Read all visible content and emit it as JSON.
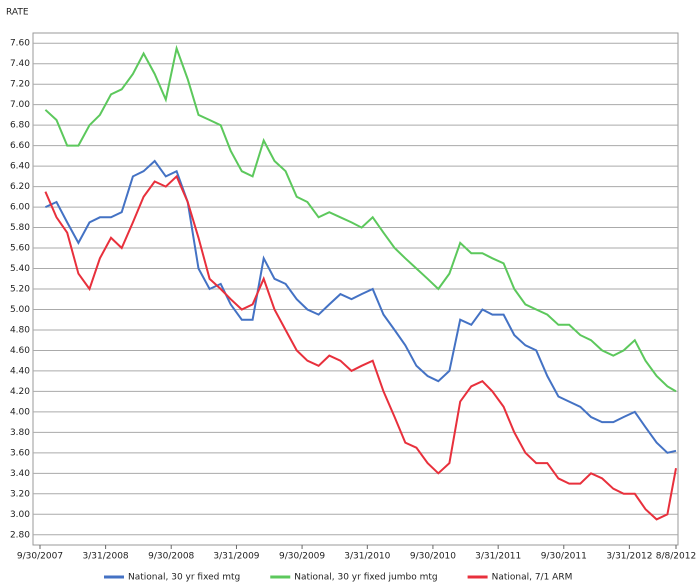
{
  "chart_data": {
    "type": "line",
    "y_label": "RATE",
    "x": [
      "10/15/2007",
      "11/15/2007",
      "12/15/2007",
      "1/15/2008",
      "2/15/2008",
      "3/15/2008",
      "4/15/2008",
      "5/15/2008",
      "6/15/2008",
      "7/15/2008",
      "8/15/2008",
      "9/15/2008",
      "10/15/2008",
      "11/15/2008",
      "12/15/2008",
      "1/15/2009",
      "2/15/2009",
      "3/15/2009",
      "4/15/2009",
      "5/15/2009",
      "6/15/2009",
      "7/15/2009",
      "8/15/2009",
      "9/15/2009",
      "10/15/2009",
      "11/15/2009",
      "12/15/2009",
      "1/15/2010",
      "2/15/2010",
      "3/15/2010",
      "4/15/2010",
      "5/15/2010",
      "6/15/2010",
      "7/15/2010",
      "8/15/2010",
      "9/15/2010",
      "10/15/2010",
      "11/15/2010",
      "12/15/2010",
      "1/15/2011",
      "2/15/2011",
      "3/15/2011",
      "4/15/2011",
      "5/15/2011",
      "6/15/2011",
      "7/15/2011",
      "8/15/2011",
      "9/15/2011",
      "10/15/2011",
      "11/15/2011",
      "12/15/2011",
      "1/15/2012",
      "2/15/2012",
      "3/15/2012",
      "4/15/2012",
      "5/15/2012",
      "6/15/2012",
      "7/15/2012",
      "8/8/2012"
    ],
    "series": [
      {
        "name": "National, 30 yr fixed mtg",
        "color": "#4472c4",
        "values": [
          6.0,
          6.05,
          5.85,
          5.65,
          5.85,
          5.9,
          5.9,
          5.95,
          6.3,
          6.35,
          6.45,
          6.3,
          6.35,
          6.05,
          5.4,
          5.2,
          5.25,
          5.05,
          4.9,
          4.9,
          5.5,
          5.3,
          5.25,
          5.1,
          5.0,
          4.95,
          5.05,
          5.15,
          5.1,
          5.15,
          5.2,
          4.95,
          4.8,
          4.65,
          4.45,
          4.35,
          4.3,
          4.4,
          4.9,
          4.85,
          5.0,
          4.95,
          4.95,
          4.75,
          4.65,
          4.6,
          4.35,
          4.15,
          4.1,
          4.05,
          3.95,
          3.9,
          3.9,
          3.95,
          4.0,
          3.85,
          3.7,
          3.6,
          3.62
        ]
      },
      {
        "name": "National, 30 yr fixed jumbo mtg",
        "color": "#5cc85c",
        "values": [
          6.95,
          6.85,
          6.6,
          6.6,
          6.8,
          6.9,
          7.1,
          7.15,
          7.3,
          7.5,
          7.3,
          7.05,
          7.55,
          7.25,
          6.9,
          6.85,
          6.8,
          6.55,
          6.35,
          6.3,
          6.65,
          6.45,
          6.35,
          6.1,
          6.05,
          5.9,
          5.95,
          5.9,
          5.85,
          5.8,
          5.9,
          5.75,
          5.6,
          5.5,
          5.4,
          5.3,
          5.2,
          5.35,
          5.65,
          5.55,
          5.55,
          5.5,
          5.45,
          5.2,
          5.05,
          5.0,
          4.95,
          4.85,
          4.85,
          4.75,
          4.7,
          4.6,
          4.55,
          4.6,
          4.7,
          4.5,
          4.35,
          4.25,
          4.2
        ]
      },
      {
        "name": "National, 7/1 ARM",
        "color": "#e8303c",
        "values": [
          6.15,
          5.9,
          5.75,
          5.35,
          5.2,
          5.5,
          5.7,
          5.6,
          5.85,
          6.1,
          6.25,
          6.2,
          6.3,
          6.05,
          5.7,
          5.3,
          5.2,
          5.1,
          5.0,
          5.05,
          5.3,
          5.0,
          4.8,
          4.6,
          4.5,
          4.45,
          4.55,
          4.5,
          4.4,
          4.45,
          4.5,
          4.2,
          3.95,
          3.7,
          3.65,
          3.5,
          3.4,
          3.5,
          4.1,
          4.25,
          4.3,
          4.2,
          4.05,
          3.8,
          3.6,
          3.5,
          3.5,
          3.35,
          3.3,
          3.3,
          3.4,
          3.35,
          3.25,
          3.2,
          3.2,
          3.05,
          2.95,
          3.0,
          3.45
        ]
      }
    ],
    "xlim": [
      "9/30/2007",
      "8/8/2012"
    ],
    "xticks": [
      "9/30/2007",
      "3/31/2008",
      "9/30/2008",
      "3/31/2009",
      "9/30/2009",
      "3/31/2010",
      "9/30/2010",
      "3/31/2011",
      "9/30/2011",
      "3/31/2012",
      "8/8/2012"
    ],
    "ylim": [
      2.7,
      7.7
    ],
    "yticks": [
      {
        "value": 2.8,
        "label": "2.80"
      },
      {
        "value": 3,
        "label": "3.00"
      },
      {
        "value": 3.2,
        "label": "3.20"
      },
      {
        "value": 3.4,
        "label": "3.40"
      },
      {
        "value": 3.6,
        "label": "3.60"
      },
      {
        "value": 3.8,
        "label": "3.80"
      },
      {
        "value": 4,
        "label": "4.00"
      },
      {
        "value": 4.2,
        "label": "4.20"
      },
      {
        "value": 4.4,
        "label": "4.40"
      },
      {
        "value": 4.6,
        "label": "4.60"
      },
      {
        "value": 4.8,
        "label": "4.80"
      },
      {
        "value": 5,
        "label": "5.00"
      },
      {
        "value": 5.2,
        "label": "5.20"
      },
      {
        "value": 5.4,
        "label": "5.40"
      },
      {
        "value": 5.6,
        "label": "5.60"
      },
      {
        "value": 5.8,
        "label": "5.80"
      },
      {
        "value": 6,
        "label": "6.00"
      },
      {
        "value": 6.2,
        "label": "6.20"
      },
      {
        "value": 6.4,
        "label": "6.40"
      },
      {
        "value": 6.6,
        "label": "6.60"
      },
      {
        "value": 6.8,
        "label": "6.80"
      },
      {
        "value": 7,
        "label": "7.00"
      },
      {
        "value": 7.2,
        "label": "7.20"
      },
      {
        "value": 7.4,
        "label": "7.40"
      },
      {
        "value": 7.6,
        "label": "7.60"
      }
    ],
    "grid": true,
    "legend": "bottom"
  }
}
